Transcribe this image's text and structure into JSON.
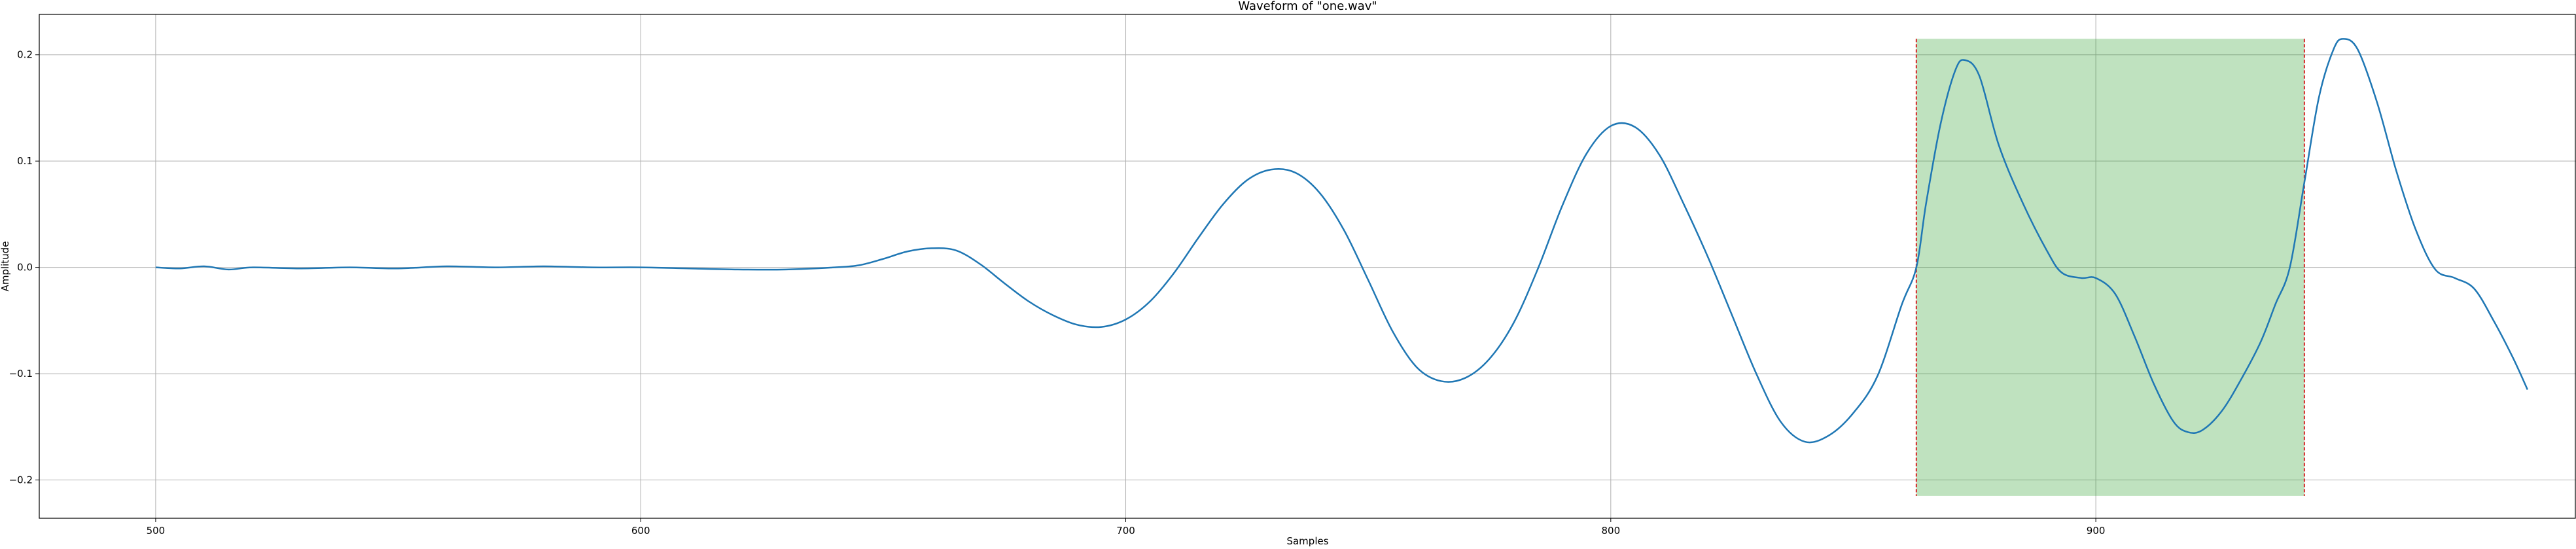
{
  "chart_data": {
    "type": "line",
    "title": "Waveform of \"one.wav\"",
    "xlabel": "Samples",
    "ylabel": "Amplitude",
    "xlim": [
      476,
      999
    ],
    "ylim": [
      -0.236,
      0.238
    ],
    "xticks": [
      500,
      600,
      700,
      800,
      900
    ],
    "xtick_labels": [
      "500",
      "600",
      "700",
      "800",
      "900"
    ],
    "yticks": [
      0.2,
      0.1,
      0.0,
      -0.1,
      -0.2
    ],
    "ytick_labels": [
      "0.2",
      "0.1",
      "0.0",
      "−0.1",
      "−0.2"
    ],
    "grid": true,
    "series": [
      {
        "name": "waveform",
        "color": "#1f77b4",
        "points": [
          [
            500,
            0.0
          ],
          [
            505,
            -0.001
          ],
          [
            510,
            0.001
          ],
          [
            515,
            -0.002
          ],
          [
            520,
            0.0
          ],
          [
            530,
            -0.001
          ],
          [
            540,
            0.0
          ],
          [
            550,
            -0.001
          ],
          [
            560,
            0.001
          ],
          [
            570,
            0.0
          ],
          [
            580,
            0.001
          ],
          [
            590,
            0.0
          ],
          [
            600,
            0.0
          ],
          [
            610,
            -0.001
          ],
          [
            620,
            -0.002
          ],
          [
            630,
            -0.002
          ],
          [
            640,
            0.0
          ],
          [
            645,
            0.002
          ],
          [
            650,
            0.008
          ],
          [
            655,
            0.015
          ],
          [
            660,
            0.018
          ],
          [
            665,
            0.016
          ],
          [
            670,
            0.003
          ],
          [
            675,
            -0.015
          ],
          [
            680,
            -0.032
          ],
          [
            685,
            -0.045
          ],
          [
            690,
            -0.054
          ],
          [
            695,
            -0.056
          ],
          [
            700,
            -0.049
          ],
          [
            705,
            -0.032
          ],
          [
            710,
            -0.005
          ],
          [
            715,
            0.028
          ],
          [
            720,
            0.059
          ],
          [
            725,
            0.082
          ],
          [
            730,
            0.092
          ],
          [
            735,
            0.089
          ],
          [
            740,
            0.07
          ],
          [
            745,
            0.035
          ],
          [
            750,
            -0.012
          ],
          [
            755,
            -0.06
          ],
          [
            760,
            -0.094
          ],
          [
            765,
            -0.107
          ],
          [
            770,
            -0.104
          ],
          [
            775,
            -0.086
          ],
          [
            780,
            -0.052
          ],
          [
            785,
            -0.001
          ],
          [
            790,
            0.058
          ],
          [
            795,
            0.107
          ],
          [
            800,
            0.133
          ],
          [
            805,
            0.132
          ],
          [
            810,
            0.106
          ],
          [
            815,
            0.06
          ],
          [
            820,
            0.01
          ],
          [
            825,
            -0.045
          ],
          [
            830,
            -0.1
          ],
          [
            835,
            -0.145
          ],
          [
            840,
            -0.164
          ],
          [
            845,
            -0.158
          ],
          [
            850,
            -0.137
          ],
          [
            855,
            -0.102
          ],
          [
            860,
            -0.035
          ],
          [
            863,
            0.0
          ],
          [
            865,
            0.06
          ],
          [
            868,
            0.135
          ],
          [
            871,
            0.185
          ],
          [
            873,
            0.195
          ],
          [
            876,
            0.18
          ],
          [
            880,
            0.115
          ],
          [
            885,
            0.06
          ],
          [
            890,
            0.015
          ],
          [
            893,
            -0.005
          ],
          [
            897,
            -0.01
          ],
          [
            900,
            -0.01
          ],
          [
            904,
            -0.025
          ],
          [
            908,
            -0.065
          ],
          [
            912,
            -0.11
          ],
          [
            916,
            -0.145
          ],
          [
            919,
            -0.155
          ],
          [
            922,
            -0.153
          ],
          [
            926,
            -0.135
          ],
          [
            930,
            -0.105
          ],
          [
            934,
            -0.07
          ],
          [
            937,
            -0.035
          ],
          [
            940,
            0.0
          ],
          [
            943,
            0.08
          ],
          [
            946,
            0.16
          ],
          [
            949,
            0.205
          ],
          [
            951,
            0.215
          ],
          [
            954,
            0.205
          ],
          [
            958,
            0.155
          ],
          [
            962,
            0.09
          ],
          [
            966,
            0.035
          ],
          [
            970,
            -0.002
          ],
          [
            974,
            -0.01
          ],
          [
            978,
            -0.02
          ],
          [
            982,
            -0.05
          ],
          [
            986,
            -0.085
          ],
          [
            989,
            -0.115
          ]
        ]
      }
    ],
    "highlight_span": {
      "x_start": 863,
      "x_end": 943,
      "y_range": [
        -0.215,
        0.215
      ],
      "fill_color": "#2ca02c",
      "fill_opacity": 0.3,
      "edge_color": "#d62728"
    }
  }
}
